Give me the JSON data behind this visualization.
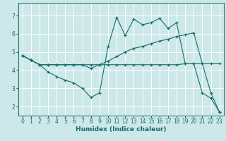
{
  "xlabel": "Humidex (Indice chaleur)",
  "ylabel": "",
  "bg_color": "#cce8e8",
  "grid_color": "#ffffff",
  "line_color": "#1a6b6b",
  "xlim": [
    -0.5,
    23.5
  ],
  "ylim": [
    1.5,
    7.7
  ],
  "xticks": [
    0,
    1,
    2,
    3,
    4,
    5,
    6,
    7,
    8,
    9,
    10,
    11,
    12,
    13,
    14,
    15,
    16,
    17,
    18,
    19,
    20,
    21,
    22,
    23
  ],
  "yticks": [
    2,
    3,
    4,
    5,
    6,
    7
  ],
  "line1_x": [
    0,
    1,
    2,
    3,
    4,
    5,
    6,
    7,
    8,
    9,
    10,
    11,
    12,
    13,
    14,
    15,
    16,
    17,
    18,
    19,
    20,
    21,
    22,
    23
  ],
  "line1_y": [
    4.8,
    4.55,
    4.3,
    4.3,
    4.3,
    4.3,
    4.3,
    4.3,
    4.3,
    4.3,
    4.3,
    4.3,
    4.3,
    4.3,
    4.3,
    4.3,
    4.3,
    4.3,
    4.3,
    4.35,
    4.35,
    4.35,
    4.35,
    4.35
  ],
  "line2_x": [
    0,
    1,
    2,
    3,
    4,
    5,
    6,
    7,
    8,
    9,
    10,
    11,
    12,
    13,
    14,
    15,
    16,
    17,
    18,
    19,
    20,
    21,
    22,
    23
  ],
  "line2_y": [
    4.8,
    4.55,
    4.3,
    3.9,
    3.65,
    3.45,
    3.3,
    3.0,
    2.5,
    2.75,
    5.3,
    6.9,
    5.9,
    6.8,
    6.5,
    6.6,
    6.85,
    6.3,
    6.6,
    4.35,
    4.35,
    2.75,
    2.45,
    1.7
  ],
  "line3_x": [
    0,
    1,
    2,
    3,
    4,
    5,
    6,
    7,
    8,
    9,
    10,
    11,
    12,
    13,
    14,
    15,
    16,
    17,
    18,
    19,
    20,
    21,
    22,
    23
  ],
  "line3_y": [
    4.8,
    4.55,
    4.3,
    4.3,
    4.3,
    4.3,
    4.3,
    4.3,
    4.1,
    4.3,
    4.5,
    4.75,
    5.0,
    5.2,
    5.3,
    5.45,
    5.6,
    5.7,
    5.85,
    5.95,
    6.05,
    4.35,
    2.75,
    1.7
  ]
}
